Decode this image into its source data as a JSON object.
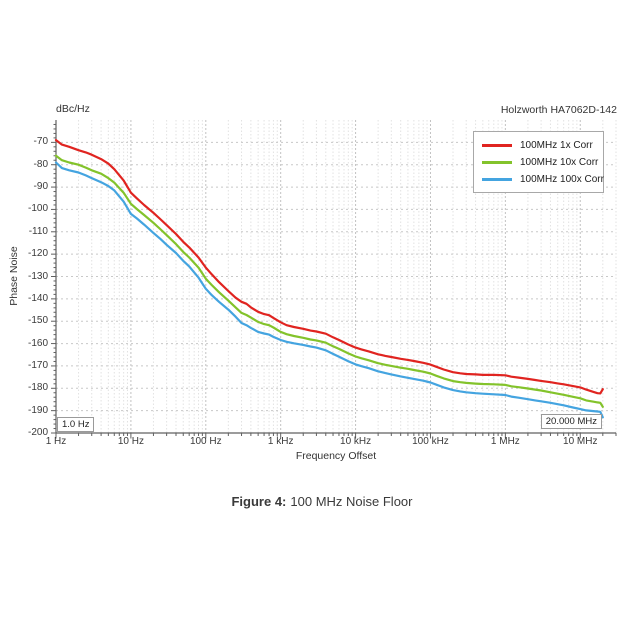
{
  "chart": {
    "units_label": "dBc/Hz",
    "instrument_label": "Holzworth HA7062D-142",
    "ylabel": "Phase Noise",
    "xlabel": "Frequency Offset",
    "start_marker": "1.0 Hz",
    "stop_marker": "20.000 MHz"
  },
  "caption": {
    "prefix": "Figure 4:",
    "text": "100 MHz Noise Floor"
  },
  "chart_data": {
    "type": "line",
    "title": "100 MHz Noise Floor",
    "xlabel": "Frequency Offset",
    "ylabel": "Phase Noise",
    "y_units": "dBc/Hz",
    "x_scale": "log",
    "xlim": [
      1,
      30000000
    ],
    "ylim": [
      -200,
      -60
    ],
    "grid": true,
    "legend_position": "top-right",
    "x_ticks": [
      {
        "value": 1,
        "label": "1 Hz"
      },
      {
        "value": 10,
        "label": "10 Hz"
      },
      {
        "value": 100,
        "label": "100 Hz"
      },
      {
        "value": 1000,
        "label": "1 kHz"
      },
      {
        "value": 10000,
        "label": "10 kHz"
      },
      {
        "value": 100000,
        "label": "100 kHz"
      },
      {
        "value": 1000000,
        "label": "1 MHz"
      },
      {
        "value": 10000000,
        "label": "10 MHz"
      }
    ],
    "y_ticks": [
      -70,
      -80,
      -90,
      -100,
      -110,
      -120,
      -130,
      -140,
      -150,
      -160,
      -170,
      -180,
      -190,
      -200
    ],
    "colors": {
      "axis": "#606060",
      "grid_major": "#c2c2c2",
      "grid_minor": "#e2e2e2",
      "grid_h": "#c8c8c8"
    },
    "series": [
      {
        "name": "100MHz 1x Corr",
        "color": "#e02420",
        "points": [
          [
            1,
            -69
          ],
          [
            1.2,
            -71
          ],
          [
            1.5,
            -72
          ],
          [
            2,
            -73.5
          ],
          [
            2.5,
            -74.5
          ],
          [
            3,
            -75.5
          ],
          [
            4,
            -77.5
          ],
          [
            5,
            -79.5
          ],
          [
            6,
            -82
          ],
          [
            8,
            -87
          ],
          [
            10,
            -92.5
          ],
          [
            12,
            -95
          ],
          [
            15,
            -98
          ],
          [
            20,
            -101.5
          ],
          [
            25,
            -104.5
          ],
          [
            30,
            -107
          ],
          [
            40,
            -111
          ],
          [
            50,
            -114.5
          ],
          [
            60,
            -117
          ],
          [
            80,
            -121.5
          ],
          [
            100,
            -126
          ],
          [
            120,
            -129
          ],
          [
            150,
            -132.5
          ],
          [
            200,
            -136.5
          ],
          [
            250,
            -139.5
          ],
          [
            300,
            -141.3
          ],
          [
            350,
            -142.2
          ],
          [
            400,
            -143.8
          ],
          [
            500,
            -145.8
          ],
          [
            600,
            -146.8
          ],
          [
            700,
            -147.3
          ],
          [
            800,
            -148.5
          ],
          [
            1000,
            -150.5
          ],
          [
            1200,
            -151.8
          ],
          [
            1500,
            -152.6
          ],
          [
            2000,
            -153.4
          ],
          [
            2500,
            -154.2
          ],
          [
            3000,
            -154.6
          ],
          [
            4000,
            -155.6
          ],
          [
            5000,
            -157.2
          ],
          [
            6000,
            -158.4
          ],
          [
            8000,
            -160.4
          ],
          [
            10000,
            -161.8
          ],
          [
            12000,
            -162.6
          ],
          [
            15000,
            -163.5
          ],
          [
            20000,
            -164.8
          ],
          [
            25000,
            -165.5
          ],
          [
            30000,
            -166
          ],
          [
            40000,
            -166.8
          ],
          [
            50000,
            -167.3
          ],
          [
            60000,
            -167.8
          ],
          [
            80000,
            -168.6
          ],
          [
            100000,
            -169.4
          ],
          [
            120000,
            -170.4
          ],
          [
            150000,
            -171.6
          ],
          [
            200000,
            -172.8
          ],
          [
            250000,
            -173.3
          ],
          [
            300000,
            -173.6
          ],
          [
            400000,
            -173.8
          ],
          [
            500000,
            -174
          ],
          [
            700000,
            -174
          ],
          [
            1000000,
            -174.2
          ],
          [
            1200000,
            -174.8
          ],
          [
            1500000,
            -175.2
          ],
          [
            2000000,
            -175.8
          ],
          [
            2500000,
            -176.3
          ],
          [
            3000000,
            -176.7
          ],
          [
            4000000,
            -177.3
          ],
          [
            5000000,
            -177.8
          ],
          [
            6000000,
            -178.2
          ],
          [
            8000000,
            -179
          ],
          [
            10000000,
            -179.6
          ],
          [
            12000000,
            -180.6
          ],
          [
            15000000,
            -181.6
          ],
          [
            17000000,
            -182.2
          ],
          [
            18500000,
            -182.3
          ],
          [
            20000000,
            -180.4
          ]
        ]
      },
      {
        "name": "100MHz 10x Corr",
        "color": "#83c32b",
        "points": [
          [
            1,
            -76
          ],
          [
            1.2,
            -78
          ],
          [
            1.5,
            -79
          ],
          [
            2,
            -80
          ],
          [
            2.5,
            -81.3
          ],
          [
            3,
            -82.5
          ],
          [
            4,
            -84
          ],
          [
            5,
            -86
          ],
          [
            6,
            -88
          ],
          [
            8,
            -92.5
          ],
          [
            10,
            -97.5
          ],
          [
            12,
            -99.8
          ],
          [
            15,
            -102.5
          ],
          [
            20,
            -106
          ],
          [
            25,
            -109
          ],
          [
            30,
            -111.5
          ],
          [
            40,
            -115.5
          ],
          [
            50,
            -119
          ],
          [
            60,
            -121.5
          ],
          [
            80,
            -126
          ],
          [
            100,
            -131
          ],
          [
            120,
            -133.8
          ],
          [
            150,
            -137
          ],
          [
            200,
            -140.8
          ],
          [
            250,
            -143.8
          ],
          [
            300,
            -146.3
          ],
          [
            350,
            -147.2
          ],
          [
            400,
            -148.4
          ],
          [
            500,
            -150.3
          ],
          [
            600,
            -151.3
          ],
          [
            700,
            -151.8
          ],
          [
            800,
            -152.8
          ],
          [
            1000,
            -154.8
          ],
          [
            1200,
            -155.8
          ],
          [
            1500,
            -156.6
          ],
          [
            2000,
            -157.4
          ],
          [
            2500,
            -158.2
          ],
          [
            3000,
            -158.6
          ],
          [
            4000,
            -159.6
          ],
          [
            5000,
            -161.2
          ],
          [
            6000,
            -162.4
          ],
          [
            8000,
            -164.4
          ],
          [
            10000,
            -165.8
          ],
          [
            12000,
            -166.6
          ],
          [
            15000,
            -167.5
          ],
          [
            20000,
            -168.8
          ],
          [
            25000,
            -169.5
          ],
          [
            30000,
            -170
          ],
          [
            40000,
            -170.8
          ],
          [
            50000,
            -171.3
          ],
          [
            60000,
            -171.8
          ],
          [
            80000,
            -172.6
          ],
          [
            100000,
            -173.4
          ],
          [
            120000,
            -174.4
          ],
          [
            150000,
            -175.6
          ],
          [
            200000,
            -176.8
          ],
          [
            250000,
            -177.3
          ],
          [
            300000,
            -177.6
          ],
          [
            400000,
            -177.9
          ],
          [
            500000,
            -178.1
          ],
          [
            700000,
            -178.2
          ],
          [
            1000000,
            -178.5
          ],
          [
            1200000,
            -179.1
          ],
          [
            1500000,
            -179.5
          ],
          [
            2000000,
            -180.1
          ],
          [
            2500000,
            -180.6
          ],
          [
            3000000,
            -181
          ],
          [
            4000000,
            -181.8
          ],
          [
            5000000,
            -182.4
          ],
          [
            6000000,
            -182.9
          ],
          [
            8000000,
            -183.8
          ],
          [
            10000000,
            -184.5
          ],
          [
            12000000,
            -185.4
          ],
          [
            15000000,
            -186
          ],
          [
            17000000,
            -186.3
          ],
          [
            18500000,
            -186.5
          ],
          [
            20000000,
            -188.3
          ]
        ]
      },
      {
        "name": "100MHz 100x Corr",
        "color": "#44a4e0",
        "points": [
          [
            1,
            -79
          ],
          [
            1.2,
            -81.5
          ],
          [
            1.5,
            -82.5
          ],
          [
            2,
            -83.5
          ],
          [
            2.5,
            -84.8
          ],
          [
            3,
            -86
          ],
          [
            4,
            -87.8
          ],
          [
            5,
            -89.5
          ],
          [
            6,
            -91.5
          ],
          [
            8,
            -96.5
          ],
          [
            10,
            -102
          ],
          [
            12,
            -104
          ],
          [
            15,
            -106.8
          ],
          [
            20,
            -110.5
          ],
          [
            25,
            -113.3
          ],
          [
            30,
            -115.8
          ],
          [
            40,
            -119.5
          ],
          [
            50,
            -123
          ],
          [
            60,
            -125.5
          ],
          [
            80,
            -130.5
          ],
          [
            100,
            -135.5
          ],
          [
            120,
            -138.3
          ],
          [
            150,
            -141.3
          ],
          [
            200,
            -144.8
          ],
          [
            250,
            -148
          ],
          [
            300,
            -150.8
          ],
          [
            350,
            -151.8
          ],
          [
            400,
            -153
          ],
          [
            500,
            -154.8
          ],
          [
            600,
            -155.5
          ],
          [
            700,
            -156
          ],
          [
            800,
            -157
          ],
          [
            1000,
            -158.4
          ],
          [
            1200,
            -159.2
          ],
          [
            1500,
            -159.9
          ],
          [
            2000,
            -160.6
          ],
          [
            2500,
            -161.3
          ],
          [
            3000,
            -161.8
          ],
          [
            4000,
            -163
          ],
          [
            5000,
            -164.6
          ],
          [
            6000,
            -165.9
          ],
          [
            8000,
            -167.9
          ],
          [
            10000,
            -169.3
          ],
          [
            12000,
            -170.1
          ],
          [
            15000,
            -171
          ],
          [
            20000,
            -172.4
          ],
          [
            25000,
            -173.2
          ],
          [
            30000,
            -173.8
          ],
          [
            40000,
            -174.7
          ],
          [
            50000,
            -175.3
          ],
          [
            60000,
            -175.8
          ],
          [
            80000,
            -176.6
          ],
          [
            100000,
            -177.4
          ],
          [
            120000,
            -178.4
          ],
          [
            150000,
            -179.6
          ],
          [
            200000,
            -180.8
          ],
          [
            250000,
            -181.4
          ],
          [
            300000,
            -181.8
          ],
          [
            400000,
            -182.2
          ],
          [
            500000,
            -182.4
          ],
          [
            700000,
            -182.7
          ],
          [
            1000000,
            -183
          ],
          [
            1200000,
            -183.7
          ],
          [
            1500000,
            -184.2
          ],
          [
            2000000,
            -184.9
          ],
          [
            2500000,
            -185.4
          ],
          [
            3000000,
            -185.8
          ],
          [
            4000000,
            -186.5
          ],
          [
            5000000,
            -187.1
          ],
          [
            6000000,
            -187.6
          ],
          [
            8000000,
            -188.6
          ],
          [
            10000000,
            -189.3
          ],
          [
            12000000,
            -189.9
          ],
          [
            15000000,
            -190.2
          ],
          [
            17000000,
            -190.4
          ],
          [
            18500000,
            -190.5
          ],
          [
            20000000,
            -193
          ]
        ]
      }
    ]
  }
}
